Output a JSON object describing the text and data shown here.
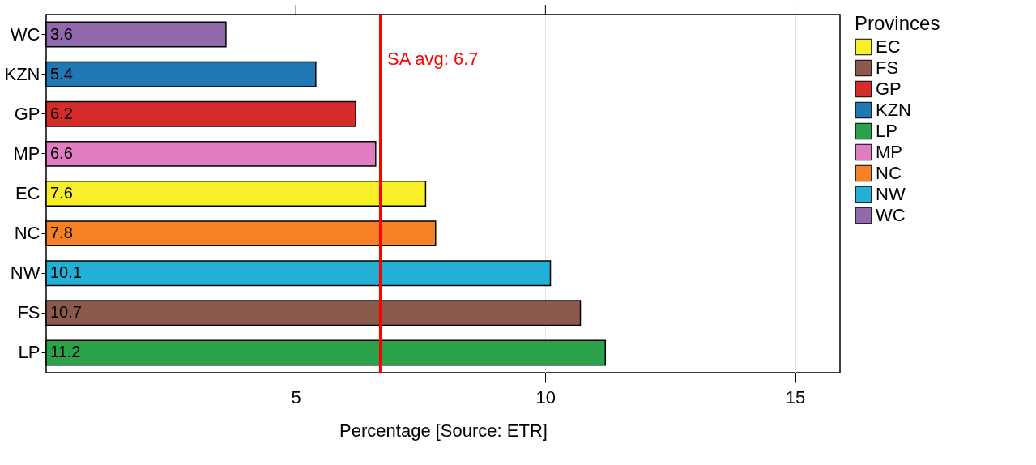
{
  "chart_data": {
    "type": "bar",
    "orientation": "horizontal",
    "categories": [
      "WC",
      "KZN",
      "GP",
      "MP",
      "EC",
      "NC",
      "NW",
      "FS",
      "LP"
    ],
    "series": [
      {
        "name": "EC",
        "color": "#f8ef2a",
        "values": [
          null,
          null,
          null,
          null,
          7.6,
          null,
          null,
          null,
          null
        ]
      },
      {
        "name": "FS",
        "color": "#8c5a4d",
        "values": [
          null,
          null,
          null,
          null,
          null,
          null,
          null,
          10.7,
          null
        ]
      },
      {
        "name": "GP",
        "color": "#d62a2b",
        "values": [
          null,
          null,
          6.2,
          null,
          null,
          null,
          null,
          null,
          null
        ]
      },
      {
        "name": "KZN",
        "color": "#1f77b4",
        "values": [
          null,
          5.4,
          null,
          null,
          null,
          null,
          null,
          null,
          null
        ]
      },
      {
        "name": "LP",
        "color": "#2ba24a",
        "values": [
          null,
          null,
          null,
          null,
          null,
          null,
          null,
          null,
          11.2
        ]
      },
      {
        "name": "MP",
        "color": "#df7cc2",
        "values": [
          null,
          null,
          null,
          6.6,
          null,
          null,
          null,
          null,
          null
        ]
      },
      {
        "name": "NC",
        "color": "#f58025",
        "values": [
          null,
          null,
          null,
          null,
          null,
          7.8,
          null,
          null,
          null
        ]
      },
      {
        "name": "NW",
        "color": "#22b1d4",
        "values": [
          null,
          null,
          null,
          null,
          null,
          null,
          10.1,
          null,
          null
        ]
      },
      {
        "name": "WC",
        "color": "#9369ae",
        "values": [
          3.6,
          null,
          null,
          null,
          null,
          null,
          null,
          null,
          null
        ]
      }
    ],
    "data_labels": true,
    "xlabel": "Percentage [Source: ETR]",
    "legend_title": "Provinces",
    "legend": "right",
    "xlim": [
      0,
      15.9
    ],
    "xticks": [
      5,
      10,
      15
    ],
    "grid": "x",
    "ref_lines": [
      {
        "axis": "x",
        "value": 6.7,
        "label": "SA avg: 6.7",
        "color": "#ff0000"
      }
    ]
  }
}
